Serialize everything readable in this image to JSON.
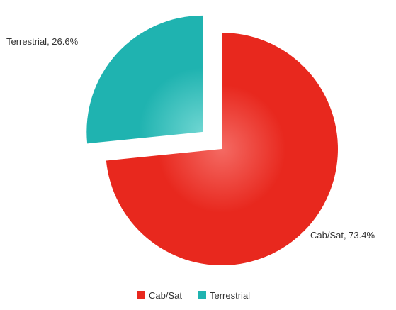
{
  "chart_data": {
    "type": "pie",
    "start_angle_deg": 0,
    "direction": "clockwise",
    "exploded_series": "Terrestrial",
    "legend_position": "bottom-center",
    "series": [
      {
        "name": "Cab/Sat",
        "value": 73.4,
        "label": "Cab/Sat, 73.4%",
        "color": "#e8281e",
        "highlight": "#f46a63"
      },
      {
        "name": "Terrestrial",
        "value": 26.6,
        "label": "Terrestrial, 26.6%",
        "color": "#1fb3b0",
        "highlight": "#6fd6d2"
      }
    ]
  }
}
